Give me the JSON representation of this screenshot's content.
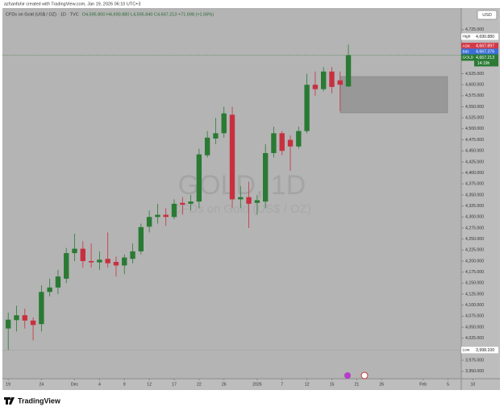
{
  "header": {
    "attribution": "azhanfahir created with TradingView.com, Jan 19, 2026 06:10 UTC+3",
    "symbol_line": "CFDs on Gold (US$ / OZ) · 1D · TVC",
    "ohlc": "O4,595.800 H4,690.880 L4,595.840 C4,667.213 +71.698 (+1.56%)"
  },
  "chart_data": {
    "type": "candlestick",
    "watermark": "GOLD, 1D",
    "watermark_subtitle": "CFDs on Gold (US$ / OZ)",
    "currency": "USD",
    "up_color": "#2a7a34",
    "down_color": "#c8303f",
    "x": [
      0,
      1,
      2,
      3,
      4,
      5,
      6,
      7,
      8,
      9,
      10,
      11,
      12,
      13,
      14,
      15,
      16,
      17,
      18,
      19,
      20,
      21,
      22,
      23,
      24,
      25,
      26,
      27,
      28,
      29,
      30,
      31,
      32,
      33,
      34,
      35,
      36,
      37,
      38,
      39,
      40,
      41
    ],
    "open": [
      4047,
      4066,
      4077,
      4065,
      4057,
      4130,
      4140,
      4160,
      4218,
      4228,
      4200,
      4197,
      4205,
      4198,
      4190,
      4205,
      4222,
      4278,
      4300,
      4305,
      4300,
      4332,
      4330,
      4335,
      4440,
      4478,
      4490,
      4532,
      4340,
      4345,
      4332,
      4335,
      4445,
      4490,
      4475,
      4460,
      4495,
      4600,
      4590,
      4630,
      4610,
      4596
    ],
    "high": [
      4083,
      4099,
      4092,
      4072,
      4145,
      4160,
      4180,
      4230,
      4262,
      4245,
      4240,
      4222,
      4265,
      4210,
      4215,
      4240,
      4285,
      4315,
      4330,
      4320,
      4340,
      4345,
      4350,
      4455,
      4495,
      4525,
      4550,
      4550,
      4370,
      4380,
      4350,
      4465,
      4505,
      4495,
      4485,
      4505,
      4625,
      4630,
      4640,
      4640,
      4630,
      4691
    ],
    "low": [
      3998,
      4040,
      4047,
      4020,
      4040,
      4120,
      4125,
      4150,
      4200,
      4185,
      4185,
      4180,
      4185,
      4165,
      4170,
      4195,
      4215,
      4265,
      4285,
      4280,
      4295,
      4305,
      4315,
      4320,
      4435,
      4465,
      4480,
      4320,
      4320,
      4275,
      4305,
      4320,
      4435,
      4440,
      4405,
      4455,
      4490,
      4575,
      4585,
      4580,
      4540,
      4596
    ],
    "close": [
      4067,
      4077,
      4065,
      4055,
      4130,
      4140,
      4165,
      4218,
      4228,
      4200,
      4197,
      4203,
      4195,
      4190,
      4208,
      4222,
      4277,
      4300,
      4305,
      4300,
      4330,
      4328,
      4335,
      4442,
      4480,
      4490,
      4535,
      4340,
      4345,
      4330,
      4338,
      4445,
      4490,
      4450,
      4460,
      4495,
      4600,
      4590,
      4630,
      4595,
      4600,
      4667
    ],
    "xlim": [
      -0.7,
      54.6
    ],
    "xticks": [
      {
        "value": 0,
        "label": "19"
      },
      {
        "value": 4,
        "label": "24"
      },
      {
        "value": 8,
        "label": "Dec"
      },
      {
        "value": 11,
        "label": "4"
      },
      {
        "value": 14,
        "label": "9"
      },
      {
        "value": 17,
        "label": "12"
      },
      {
        "value": 20,
        "label": "17"
      },
      {
        "value": 23,
        "label": "22"
      },
      {
        "value": 26,
        "label": "26"
      },
      {
        "value": 30,
        "label": "2026"
      },
      {
        "value": 33,
        "label": "7"
      },
      {
        "value": 36,
        "label": "12"
      },
      {
        "value": 39,
        "label": "15"
      },
      {
        "value": 42,
        "label": "21"
      },
      {
        "value": 45,
        "label": "26"
      },
      {
        "value": 50,
        "label": "Feb"
      },
      {
        "value": 53,
        "label": "5"
      },
      {
        "value": 56,
        "label": "10"
      }
    ],
    "ylim": [
      3933,
      4774
    ],
    "yticks": [
      {
        "value": 4725,
        "label": "4,725.000"
      },
      {
        "value": 4625,
        "label": "4,625.000"
      },
      {
        "value": 4600,
        "label": "4,600.000"
      },
      {
        "value": 4575,
        "label": "4,575.000"
      },
      {
        "value": 4550,
        "label": "4,550.000"
      },
      {
        "value": 4525,
        "label": "4,525.000"
      },
      {
        "value": 4500,
        "label": "4,500.000"
      },
      {
        "value": 4475,
        "label": "4,475.000"
      },
      {
        "value": 4450,
        "label": "4,450.000"
      },
      {
        "value": 4425,
        "label": "4,425.000"
      },
      {
        "value": 4400,
        "label": "4,400.000"
      },
      {
        "value": 4375,
        "label": "4,375.000"
      },
      {
        "value": 4350,
        "label": "4,350.000"
      },
      {
        "value": 4325,
        "label": "4,325.000"
      },
      {
        "value": 4300,
        "label": "4,300.000"
      },
      {
        "value": 4275,
        "label": "4,275.000"
      },
      {
        "value": 4250,
        "label": "4,250.000"
      },
      {
        "value": 4225,
        "label": "4,225.000"
      },
      {
        "value": 4200,
        "label": "4,200.000"
      },
      {
        "value": 4175,
        "label": "4,175.000"
      },
      {
        "value": 4150,
        "label": "4,150.000"
      },
      {
        "value": 4125,
        "label": "4,125.000"
      },
      {
        "value": 4100,
        "label": "4,100.000"
      },
      {
        "value": 4075,
        "label": "4,075.000"
      },
      {
        "value": 4050,
        "label": "4,050.000"
      },
      {
        "value": 4025,
        "label": "4,025.000"
      },
      {
        "value": 3975,
        "label": "3,975.000"
      },
      {
        "value": 3950,
        "label": "3,950.000"
      }
    ],
    "grid": false,
    "price_labels": [
      {
        "name": "High",
        "value": 4690.88,
        "value_label": "4,690.880",
        "color": "#ffffff",
        "text_color": "#222222",
        "offset": -10
      },
      {
        "name": "ASK",
        "value": 4667.897,
        "value_label": "4,667.897",
        "color": "#d23a48",
        "text_color": "#ffffff",
        "offset": -11
      },
      {
        "name": "BID",
        "value": 4667.376,
        "value_label": "4,667.376",
        "color": "#3b6fd8",
        "text_color": "#ffffff",
        "offset": -4
      },
      {
        "name": "GOLD",
        "value": 4667.213,
        "value_label": "4,667.213",
        "color": "#2a7a34",
        "text_color": "#ffffff",
        "offset": 3
      },
      {
        "name": "Low",
        "value": 3998.1,
        "value_label": "3,998.100",
        "color": "#ffffff",
        "text_color": "#222222",
        "offset": 0
      }
    ],
    "countdown": "14:19h"
  },
  "footer": {
    "brand": "TradingView"
  }
}
